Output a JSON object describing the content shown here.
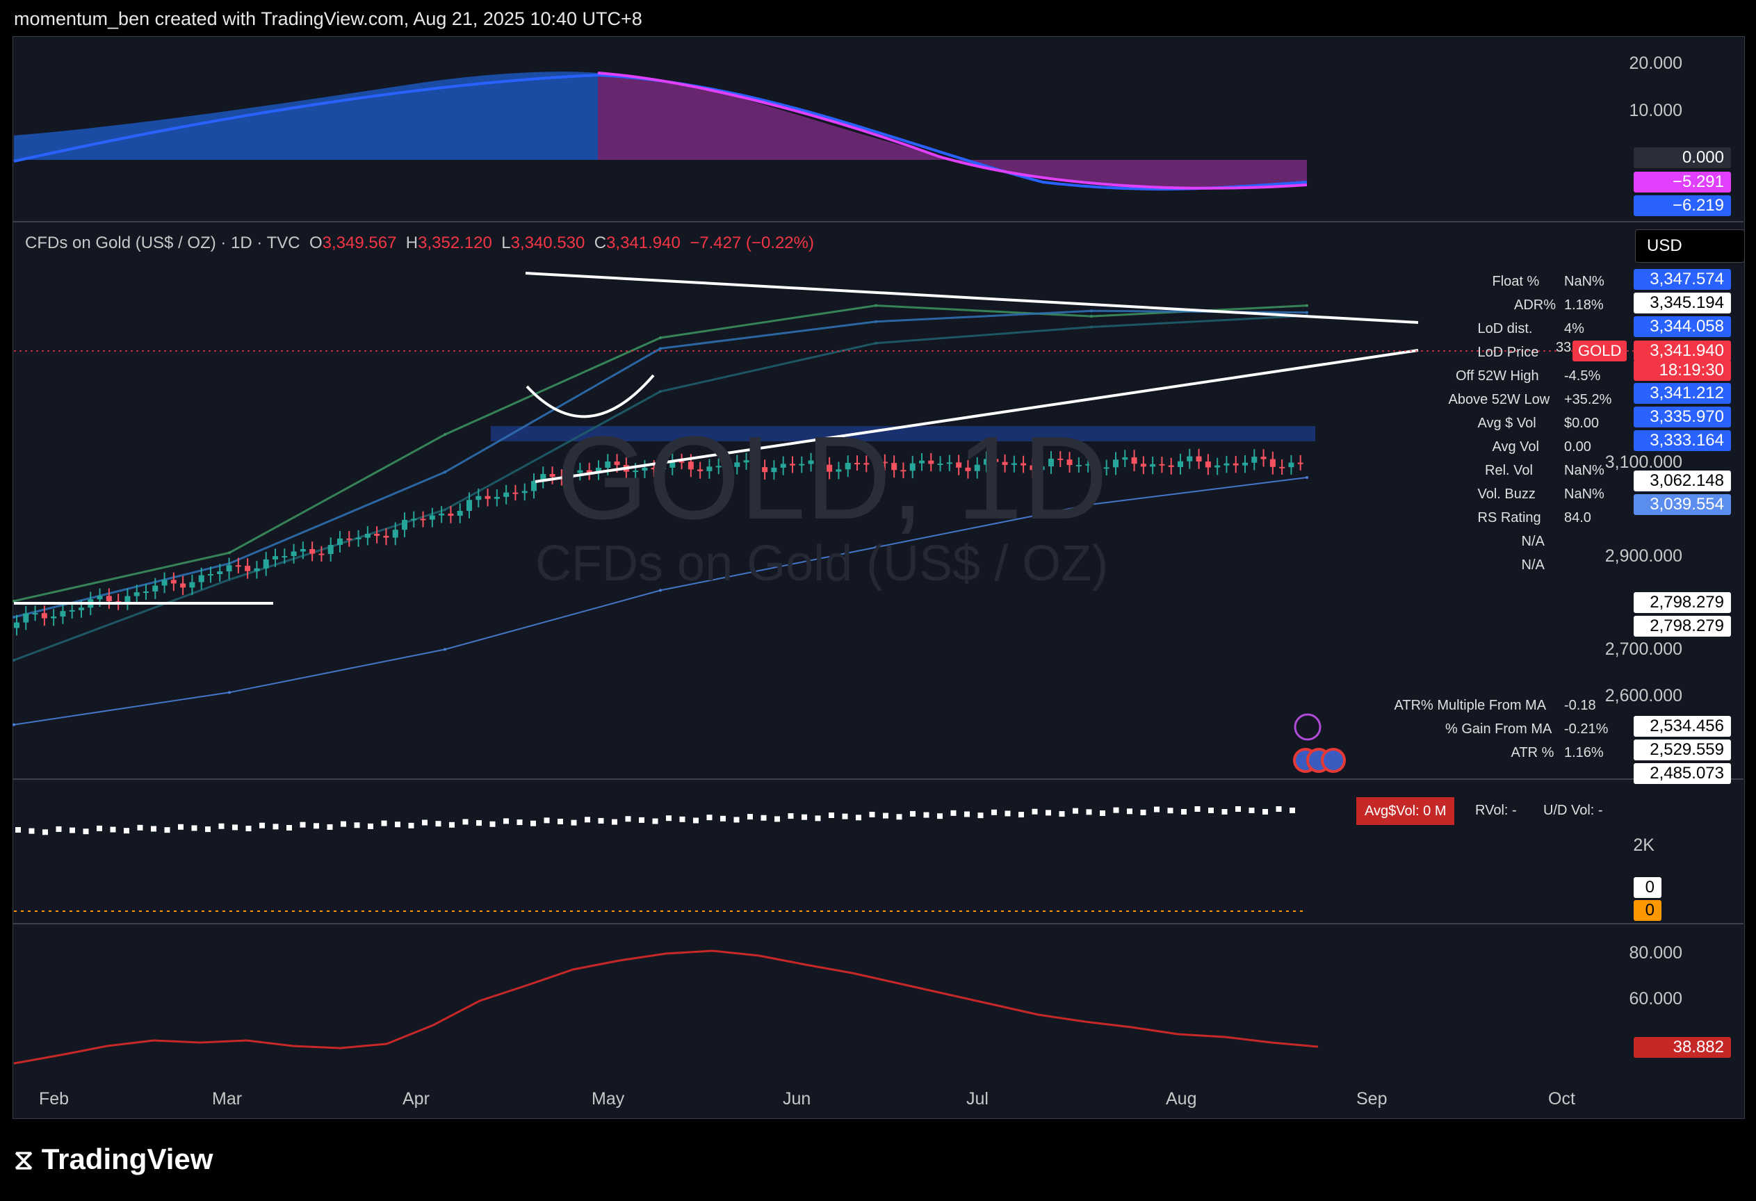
{
  "header": {
    "text": "momentum_ben created with TradingView.com, Aug 21, 2025 10:40 UTC+8"
  },
  "symbol_line": {
    "title": "CFDs on Gold (US$ / OZ) · 1D · TVC",
    "o_label": "O",
    "o_val": "3,349.567",
    "h_label": "H",
    "h_val": "3,352.120",
    "l_label": "L",
    "l_val": "3,340.530",
    "c_label": "C",
    "c_val": "3,341.940",
    "change": "−7.427 (−0.22%)"
  },
  "currency": "USD",
  "watermark": {
    "ticker": "GOLD, 1D",
    "name": "CFDs on Gold (US$ / OZ)"
  },
  "colors": {
    "bg": "#131722",
    "up": "#26a69a",
    "down": "#f7525f",
    "accent_blue": "#2962ff",
    "magenta": "#e040fb"
  },
  "top_pane": {
    "axis_labels": [
      "20.000",
      "10.000"
    ],
    "badges": [
      {
        "text": "0.000",
        "bg": "#2a2e39",
        "fg": "#ffffff"
      },
      {
        "text": "−5.291",
        "bg": "#e040fb",
        "fg": "#ffffff"
      },
      {
        "text": "−6.219",
        "bg": "#2962ff",
        "fg": "#ffffff"
      }
    ]
  },
  "price_axis": {
    "labels": [
      "3,100.000",
      "2,900.000",
      "2,700.000",
      "2,600.000"
    ],
    "badges": [
      {
        "text": "3,347.574",
        "bg": "#2962ff",
        "fg": "#ffffff"
      },
      {
        "text": "3,345.194",
        "bg": "#ffffff",
        "fg": "#000000"
      },
      {
        "text": "3,344.058",
        "bg": "#2962ff",
        "fg": "#ffffff"
      },
      {
        "text": "3,341.940",
        "bg": "#f23645",
        "fg": "#ffffff"
      },
      {
        "text": "18:19:30",
        "bg": "#f23645",
        "fg": "#ffffff"
      },
      {
        "text": "3,341.212",
        "bg": "#2962ff",
        "fg": "#ffffff"
      },
      {
        "text": "3,335.970",
        "bg": "#2962ff",
        "fg": "#ffffff"
      },
      {
        "text": "3,333.164",
        "bg": "#2962ff",
        "fg": "#ffffff"
      },
      {
        "text": "3,062.148",
        "bg": "#ffffff",
        "fg": "#000000"
      },
      {
        "text": "3,039.554",
        "bg": "#5b8def",
        "fg": "#ffffff"
      },
      {
        "text": "2,798.279",
        "bg": "#ffffff",
        "fg": "#000000"
      },
      {
        "text": "2,798.279",
        "bg": "#ffffff",
        "fg": "#000000"
      },
      {
        "text": "2,534.456",
        "bg": "#ffffff",
        "fg": "#000000"
      },
      {
        "text": "2,529.559",
        "bg": "#ffffff",
        "fg": "#000000"
      },
      {
        "text": "2,485.073",
        "bg": "#ffffff",
        "fg": "#000000"
      }
    ],
    "gold_tag": "GOLD",
    "gold_tag_prefix": "33"
  },
  "stats_table": [
    {
      "label": "Float %",
      "value": "NaN%"
    },
    {
      "label": "ADR%",
      "value": "1.18%"
    },
    {
      "label": "LoD dist.",
      "value": "4%"
    },
    {
      "label": "LoD Price",
      "value": ""
    },
    {
      "label": "Off 52W High",
      "value": "-4.5%"
    },
    {
      "label": "Above 52W Low",
      "value": "+35.2%"
    },
    {
      "label": "Avg $ Vol",
      "value": "$0.00"
    },
    {
      "label": "Avg Vol",
      "value": "0.00"
    },
    {
      "label": "Rel. Vol",
      "value": "NaN%"
    },
    {
      "label": "Vol. Buzz",
      "value": "NaN%"
    },
    {
      "label": "RS Rating",
      "value": "84.0"
    },
    {
      "label": "N/A",
      "value": ""
    },
    {
      "label": "N/A",
      "value": ""
    }
  ],
  "ma_table": [
    {
      "label": "ATR% Multiple From MA",
      "value": "-0.18"
    },
    {
      "label": "% Gain From MA",
      "value": "-0.21%"
    },
    {
      "label": "ATR %",
      "value": "1.16%"
    }
  ],
  "volume_pane": {
    "avg_vol_label": "Avg$Vol: 0 M",
    "rvol_label": "RVol: -",
    "ud_label": "U/D Vol: -",
    "axis_label": "2K",
    "badges": [
      {
        "text": "0",
        "bg": "#ffffff",
        "fg": "#000000"
      },
      {
        "text": "0",
        "bg": "#ff9800",
        "fg": "#000000"
      }
    ]
  },
  "rs_pane": {
    "axis_labels": [
      "80.000",
      "60.000"
    ],
    "badge": {
      "text": "38.882",
      "bg": "#c62828",
      "fg": "#ffffff"
    }
  },
  "x_axis": [
    "Feb",
    "Mar",
    "Apr",
    "May",
    "Jun",
    "Jul",
    "Aug",
    "Sep",
    "Oct"
  ],
  "brand": "TradingView",
  "chart_data": {
    "type": "line",
    "x": [
      "Feb",
      "Mar",
      "Apr",
      "May",
      "Jun",
      "Jul",
      "Aug"
    ],
    "series": [
      {
        "values": [
          2810,
          2900,
          3120,
          3300,
          3360,
          3340,
          3360
        ]
      },
      {
        "values": [
          2780,
          2880,
          3050,
          3280,
          3330,
          3350,
          3347
        ]
      },
      {
        "values": [
          2700,
          2850,
          2980,
          3200,
          3290,
          3320,
          3341
        ]
      },
      {
        "values": [
          2580,
          2640,
          2720,
          2830,
          2910,
          2990,
          3040
        ]
      }
    ],
    "ylim": [
      2480,
      3450
    ]
  }
}
